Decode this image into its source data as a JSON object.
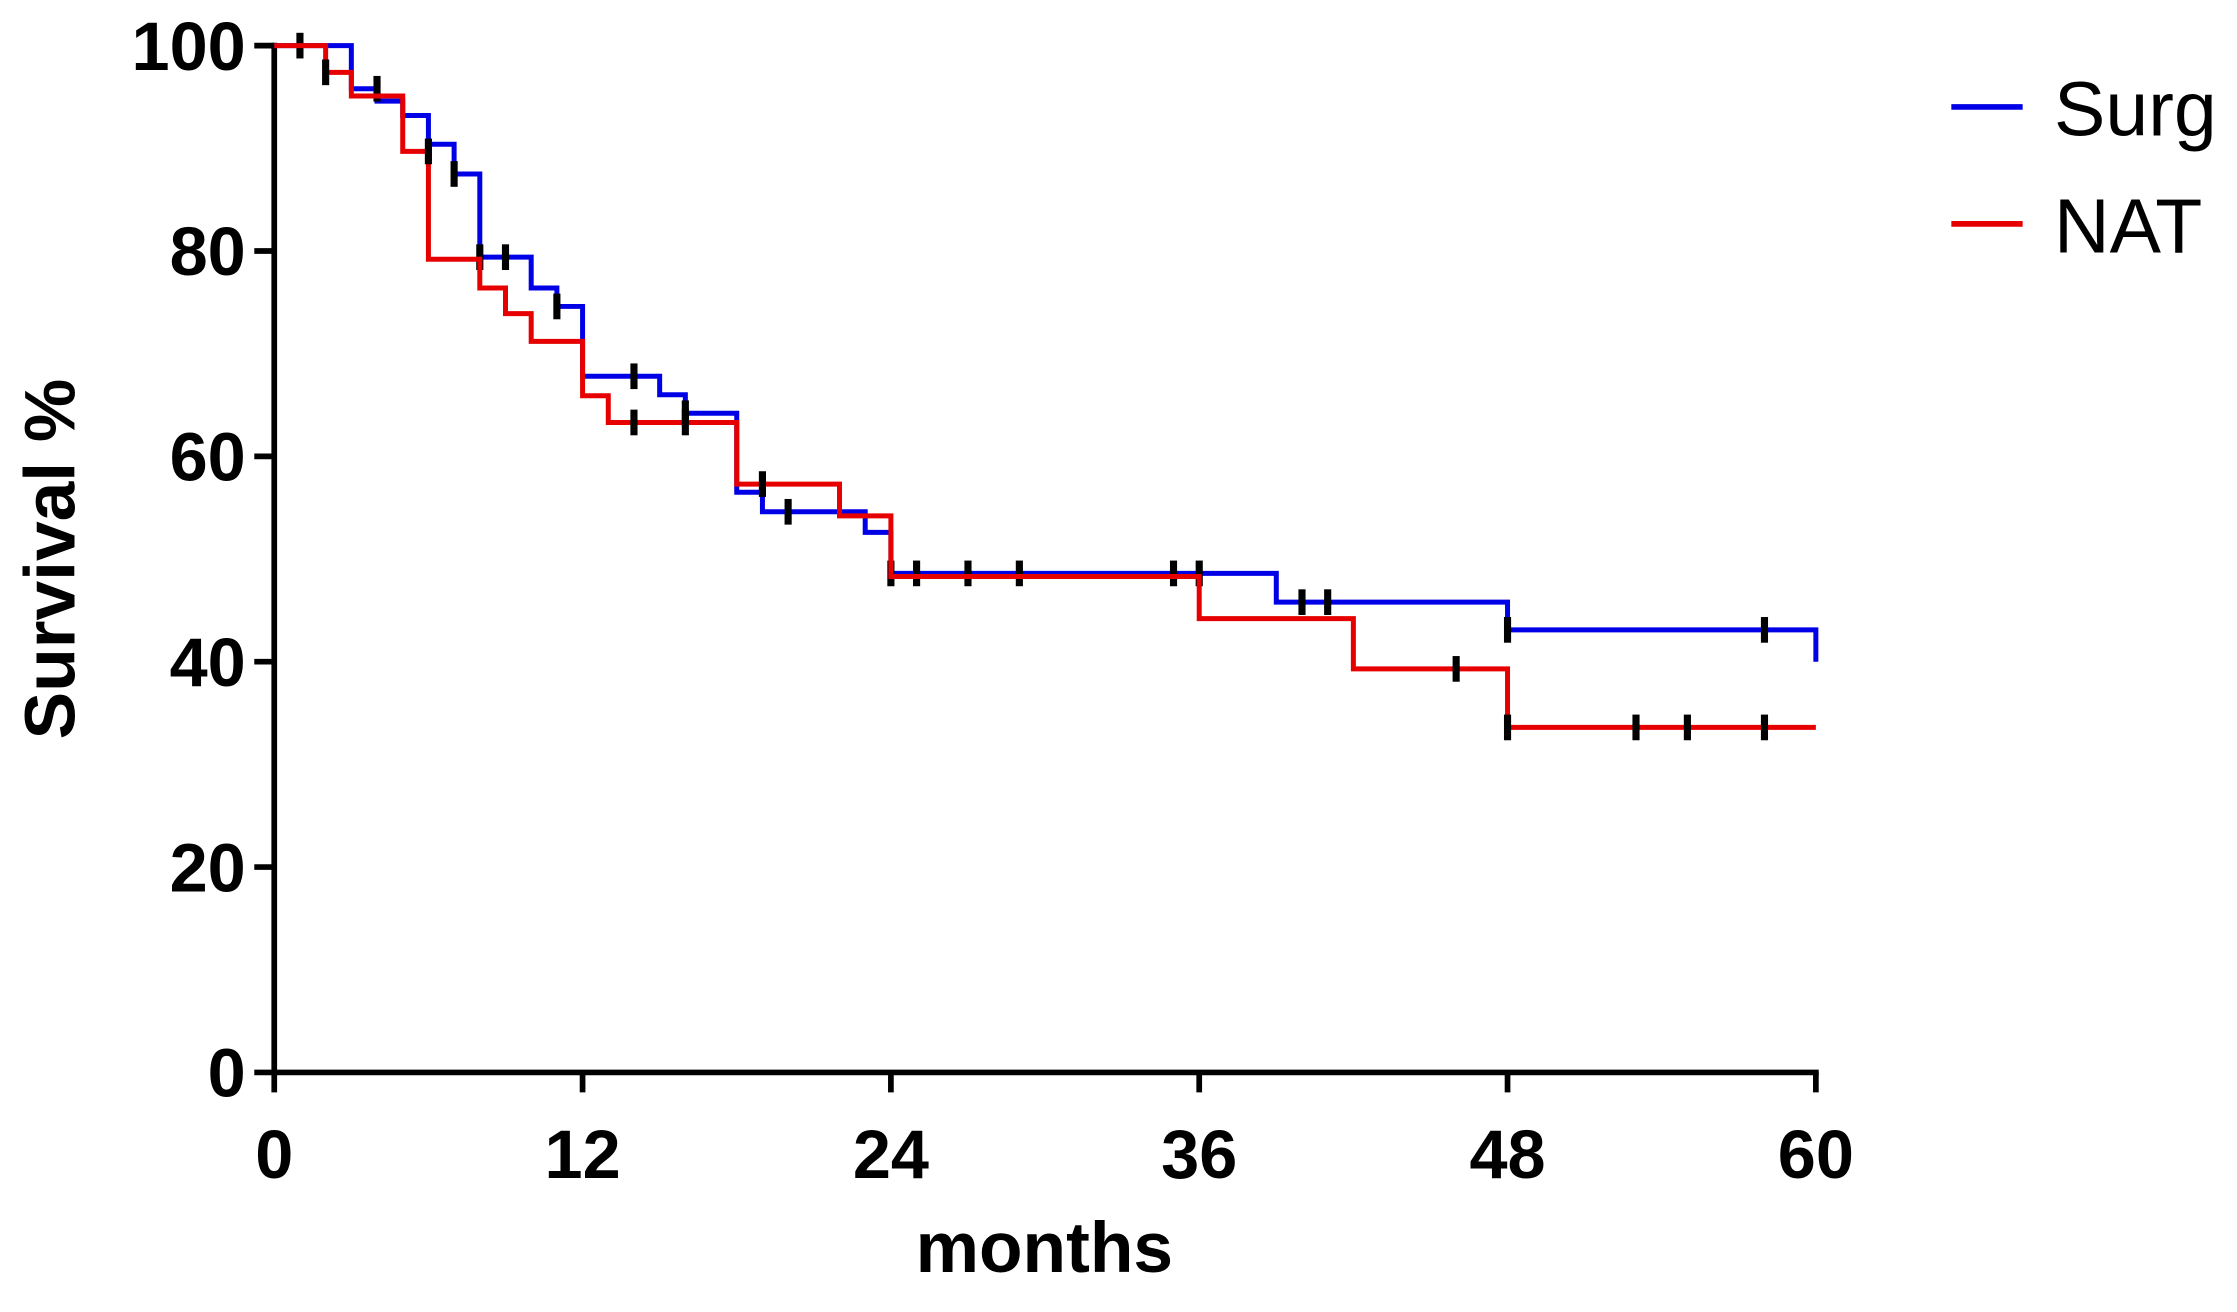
{
  "chart_data": {
    "type": "step",
    "x_label": "months",
    "y_label": "Survival %",
    "xlim": [
      0,
      60
    ],
    "xticks": [
      0,
      12,
      24,
      36,
      48,
      60
    ],
    "ylim": [
      0,
      100
    ],
    "yticks": [
      0,
      20,
      40,
      60,
      80,
      100
    ],
    "legend": "top-right",
    "series": [
      {
        "name": "Surg",
        "color": "#0000e6",
        "x": [
          0,
          3,
          4,
          5,
          6,
          7,
          8,
          10,
          11,
          12,
          15,
          16,
          18,
          19,
          23,
          24,
          39,
          48,
          60
        ],
        "values": [
          100,
          95.8,
          94.6,
          93.2,
          90.4,
          87.5,
          79.4,
          76.4,
          74.6,
          67.8,
          66,
          64.2,
          56.5,
          54.6,
          52.6,
          48.6,
          45.8,
          43.1,
          40
        ],
        "censor_x": [
          1,
          4,
          7,
          8,
          9,
          11,
          14,
          16,
          20,
          24,
          25,
          27,
          29,
          35,
          36,
          40,
          41,
          48,
          58
        ],
        "censor_values": [
          100,
          95.8,
          87.5,
          79.4,
          79.4,
          74.6,
          67.8,
          64.2,
          54.6,
          48.6,
          48.6,
          48.6,
          48.6,
          48.6,
          48.6,
          45.8,
          45.8,
          43.1,
          43.1
        ]
      },
      {
        "name": "NAT",
        "color": "#e60000",
        "x": [
          0,
          2,
          3,
          5,
          6,
          8,
          9,
          10,
          12,
          13,
          18,
          22,
          24,
          36,
          42,
          48,
          60
        ],
        "values": [
          100,
          97.4,
          95.1,
          89.7,
          79.2,
          76.4,
          73.9,
          71.2,
          65.9,
          63.3,
          57.3,
          54.2,
          48.3,
          44.2,
          39.3,
          33.6,
          33.6
        ],
        "censor_x": [
          2,
          6,
          14,
          16,
          19,
          46,
          48,
          53,
          55,
          58
        ],
        "censor_values": [
          97.4,
          89.7,
          63.3,
          63.3,
          57.3,
          39.3,
          33.6,
          33.6,
          33.6,
          33.6
        ]
      }
    ]
  }
}
